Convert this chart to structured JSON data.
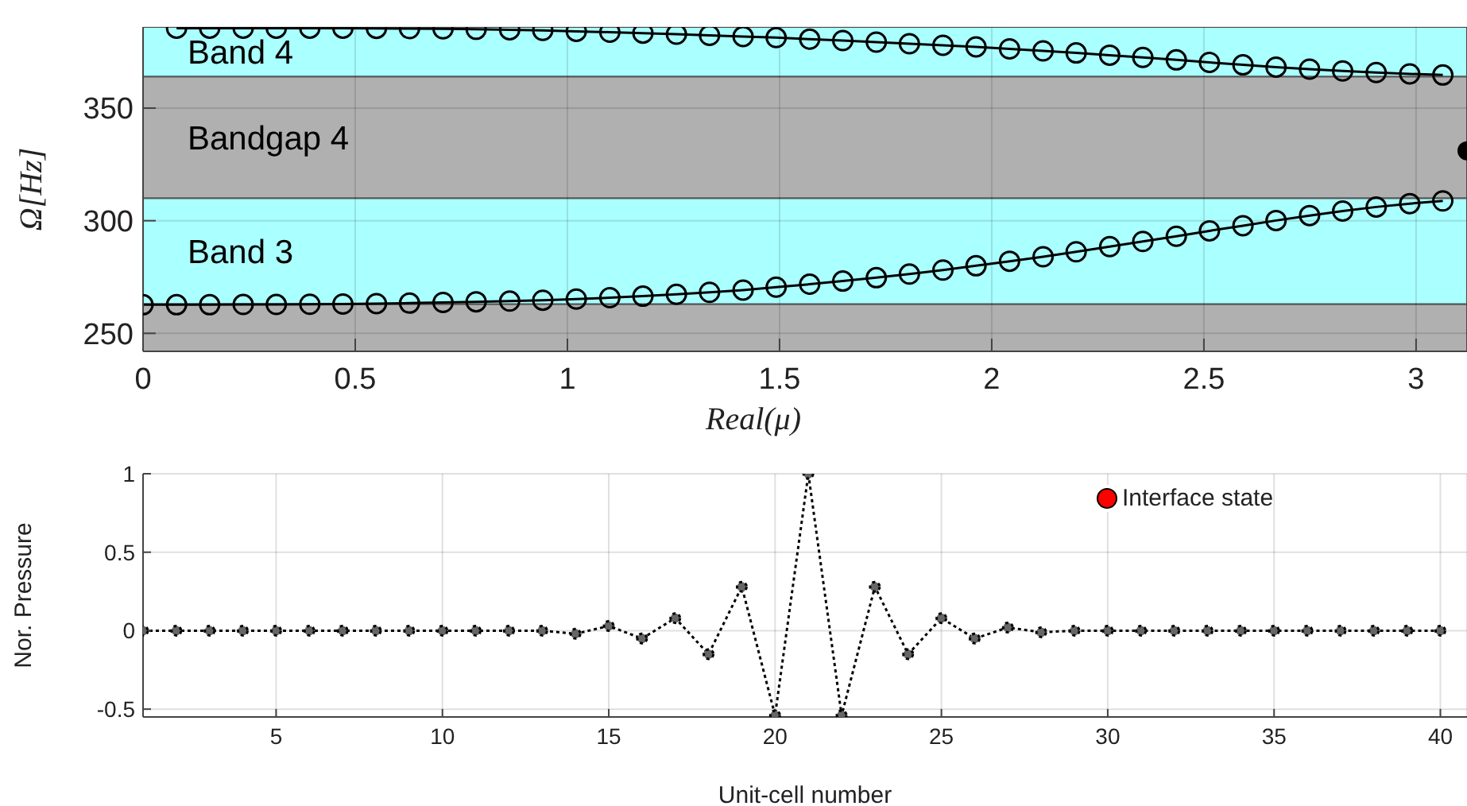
{
  "chart_data": [
    {
      "type": "line",
      "xlabel": "Real(μ)",
      "ylabel": "Ω[Hz]",
      "xlim": [
        0,
        3.12
      ],
      "ylim": [
        242,
        386
      ],
      "xticks": [
        0,
        0.5,
        1,
        1.5,
        2,
        2.5,
        3
      ],
      "yticks": [
        250,
        300,
        350
      ],
      "grid": true,
      "marker": "circle",
      "line_style": "solid",
      "x": [
        0,
        0.079,
        0.157,
        0.236,
        0.314,
        0.393,
        0.471,
        0.55,
        0.628,
        0.707,
        0.785,
        0.864,
        0.942,
        1.021,
        1.1,
        1.178,
        1.257,
        1.335,
        1.414,
        1.492,
        1.571,
        1.649,
        1.728,
        1.806,
        1.885,
        1.963,
        2.042,
        2.121,
        2.199,
        2.278,
        2.356,
        2.435,
        2.513,
        2.592,
        2.67,
        2.749,
        2.827,
        2.906,
        2.985,
        3.063
      ],
      "bands": [
        {
          "axis": "y",
          "from": 242,
          "to": 263,
          "label": null,
          "color": "#b0b0b0"
        },
        {
          "axis": "y",
          "from": 263,
          "to": 310,
          "label": "Band 3",
          "color": "#aaffff"
        },
        {
          "axis": "y",
          "from": 310,
          "to": 364,
          "label": "Bandgap 4",
          "color": "#b0b0b0"
        },
        {
          "axis": "y",
          "from": 364,
          "to": 386,
          "label": "Band 4",
          "color": "#aaffff"
        }
      ],
      "series": [
        {
          "color": "#000000",
          "values": [
            null,
            385.5,
            385.5,
            385.5,
            385.5,
            385.5,
            385.5,
            385.4,
            385.3,
            385.2,
            385,
            384.8,
            384.5,
            384.1,
            383.7,
            383.3,
            382.8,
            382.3,
            381.8,
            381.3,
            380.6,
            380,
            379.3,
            378.6,
            377.9,
            377.2,
            376.3,
            375.4,
            374.5,
            373.5,
            372.5,
            371.4,
            370.3,
            369.2,
            368.2,
            367.3,
            366.5,
            365.8,
            365.2,
            364.7
          ]
        },
        {
          "color": "#000000",
          "values": [
            262.7,
            262.7,
            262.7,
            262.8,
            262.8,
            262.9,
            263,
            263.2,
            263.4,
            263.7,
            264,
            264.3,
            264.7,
            265.2,
            265.8,
            266.5,
            267.3,
            268.2,
            269.2,
            270.5,
            271.8,
            273.2,
            274.7,
            276.3,
            278.1,
            280,
            282,
            284,
            286.2,
            288.5,
            290.8,
            293.1,
            295.5,
            297.8,
            300.1,
            302.3,
            304.3,
            306.1,
            307.6,
            308.8
          ]
        },
        {
          "type": "scatter",
          "color": "#000000",
          "x": [
            3.12
          ],
          "values": [
            331
          ]
        }
      ]
    },
    {
      "type": "line",
      "xlabel": "Unit-cell number",
      "ylabel": "Nor. Pressure",
      "xlim": [
        1,
        40.8
      ],
      "ylim": [
        -0.55,
        1
      ],
      "xticks": [
        5,
        10,
        15,
        20,
        25,
        30,
        35,
        40
      ],
      "yticks": [
        -0.5,
        0,
        0.5,
        1
      ],
      "grid": true,
      "marker": "circle",
      "line_style": "dotted",
      "annotations": [
        "Interface state"
      ],
      "x": [
        1,
        2,
        3,
        4,
        5,
        6,
        7,
        8,
        9,
        10,
        11,
        12,
        13,
        14,
        15,
        16,
        17,
        18,
        19,
        20,
        21,
        22,
        23,
        24,
        25,
        26,
        27,
        28,
        29,
        30,
        31,
        32,
        33,
        34,
        35,
        36,
        37,
        38,
        39,
        40
      ],
      "series": [
        {
          "color": "#000000",
          "values": [
            0,
            0,
            0,
            0,
            0,
            0,
            0,
            0,
            0,
            0,
            0,
            0,
            0,
            -0.02,
            0.03,
            -0.05,
            0.08,
            -0.15,
            0.28,
            -0.54,
            1,
            -0.54,
            0.28,
            -0.15,
            0.08,
            -0.05,
            0.02,
            -0.01,
            0,
            0,
            0,
            0,
            0,
            0,
            0,
            0,
            0,
            0,
            0,
            0
          ]
        }
      ]
    }
  ]
}
